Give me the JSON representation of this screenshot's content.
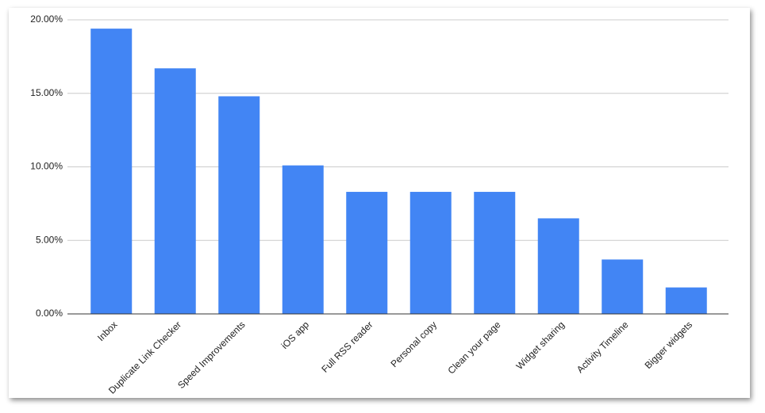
{
  "chart_data": {
    "type": "bar",
    "categories": [
      "Inbox",
      "Duplicate Link Checker",
      "Speed Improvements",
      "iOS app",
      "Full RSS reader",
      "Personal copy",
      "Clean your page",
      "Widget sharing",
      "Activity Timeline",
      "Bigger widgets"
    ],
    "values": [
      19.4,
      16.7,
      14.8,
      10.1,
      8.3,
      8.3,
      8.3,
      6.5,
      3.7,
      1.8
    ],
    "color": "#4285f4",
    "ylim": [
      0,
      20
    ],
    "yticks": [
      {
        "value": 0,
        "label": "0.00%"
      },
      {
        "value": 5,
        "label": "5.00%"
      },
      {
        "value": 10,
        "label": "10.00%"
      },
      {
        "value": 15,
        "label": "15.00%"
      },
      {
        "value": 20,
        "label": "20.00%"
      }
    ],
    "grid": true
  }
}
